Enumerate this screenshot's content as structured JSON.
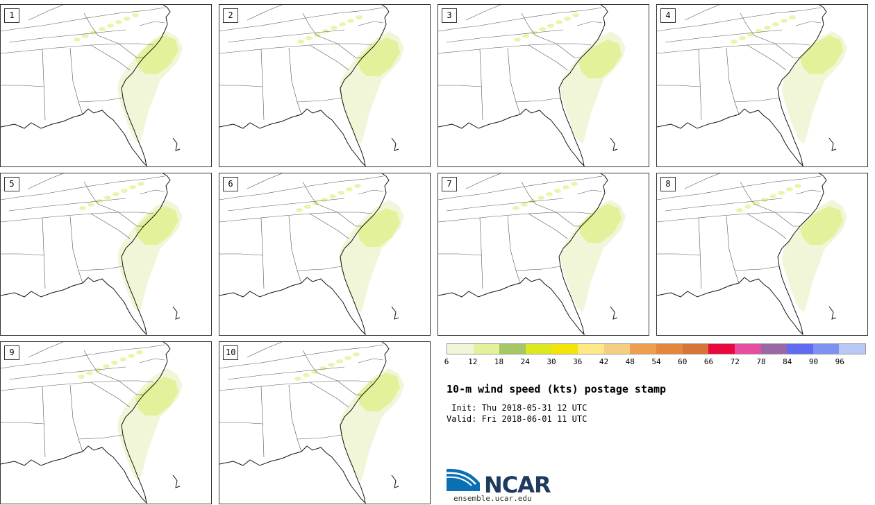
{
  "panels": [
    {
      "label": "1"
    },
    {
      "label": "2"
    },
    {
      "label": "3"
    },
    {
      "label": "4"
    },
    {
      "label": "5"
    },
    {
      "label": "6"
    },
    {
      "label": "7"
    },
    {
      "label": "8"
    },
    {
      "label": "9"
    },
    {
      "label": "10"
    }
  ],
  "colorbar": {
    "colors": [
      "#f1f6d9",
      "#e3f29a",
      "#a6c765",
      "#dbe81f",
      "#f5e40a",
      "#fde985",
      "#f5cd83",
      "#ee9f4d",
      "#e4873d",
      "#d77438",
      "#e9093f",
      "#e54f9f",
      "#9a69a5",
      "#5f6cf0",
      "#7e93f1",
      "#b7c8f5"
    ],
    "tick_labels": [
      "6",
      "12",
      "18",
      "24",
      "30",
      "36",
      "42",
      "48",
      "54",
      "60",
      "66",
      "72",
      "78",
      "84",
      "90",
      "96"
    ]
  },
  "title": "10-m wind speed (kts) postage stamp",
  "init": " Init: Thu 2018-05-31 12 UTC",
  "valid": "Valid: Fri 2018-06-01 11 UTC",
  "logo": {
    "text": "NCAR",
    "site": "ensemble.ucar.edu"
  }
}
